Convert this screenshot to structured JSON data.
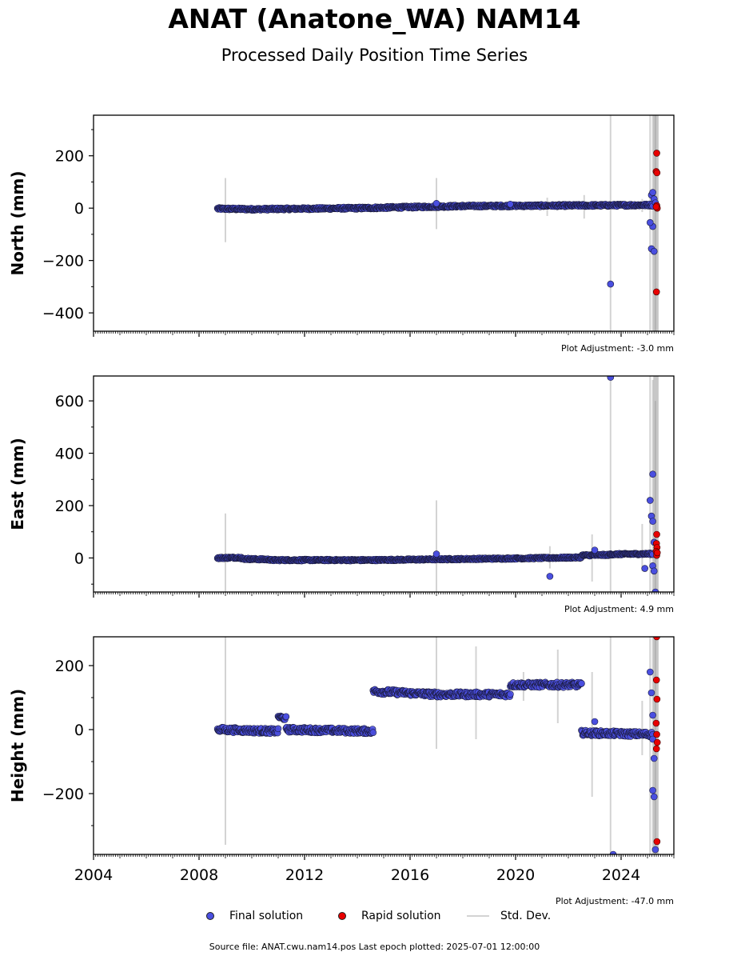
{
  "header": {
    "title": "ANAT (Anatone_WA) NAM14",
    "subtitle": "Processed Daily Position Time Series"
  },
  "legend": {
    "final": "Final solution",
    "rapid": "Rapid solution",
    "stddev": "Std. Dev."
  },
  "footer": "Source file: ANAT.cwu.nam14.pos  Last epoch plotted: 2025-07-01 12:00:00",
  "colors": {
    "final": "#4a4fe0",
    "rapid": "#e80000",
    "stddev": "#d3d3d3",
    "edge": "#1a1a3a"
  },
  "chart_data": [
    {
      "type": "scatter",
      "name": "north",
      "ylabel": "North (mm)",
      "xlim": [
        2004,
        2026
      ],
      "ylim": [
        -470,
        355
      ],
      "yticks": [
        -400,
        -200,
        0,
        200
      ],
      "adjustment": "Plot Adjustment: -3.0 mm",
      "final_segments": [
        {
          "x": [
            2008.7,
            2010.0
          ],
          "y": [
            -2,
            -4
          ],
          "noise": 4
        },
        {
          "x": [
            2010.0,
            2014.0
          ],
          "y": [
            -4,
            0
          ],
          "noise": 4
        },
        {
          "x": [
            2014.0,
            2018.0
          ],
          "y": [
            0,
            8
          ],
          "noise": 4
        },
        {
          "x": [
            2018.0,
            2022.0
          ],
          "y": [
            8,
            10
          ],
          "noise": 4
        },
        {
          "x": [
            2022.0,
            2025.2
          ],
          "y": [
            10,
            12
          ],
          "noise": 4
        }
      ],
      "final_outliers": [
        [
          2017.0,
          18
        ],
        [
          2019.8,
          15
        ],
        [
          2023.6,
          -290
        ],
        [
          2025.15,
          50
        ],
        [
          2025.2,
          60
        ],
        [
          2025.25,
          35
        ],
        [
          2025.2,
          -70
        ],
        [
          2025.15,
          -155
        ],
        [
          2025.25,
          -165
        ],
        [
          2025.1,
          -55
        ],
        [
          2025.3,
          20
        ]
      ],
      "rapid": [
        [
          2025.35,
          210
        ],
        [
          2025.33,
          140
        ],
        [
          2025.36,
          135
        ],
        [
          2025.34,
          -320
        ],
        [
          2025.35,
          10
        ],
        [
          2025.37,
          0
        ],
        [
          2025.33,
          5
        ]
      ],
      "stddev": [
        [
          2009.0,
          -130,
          115
        ],
        [
          2017.0,
          -80,
          115
        ],
        [
          2021.2,
          -30,
          40
        ],
        [
          2022.6,
          -40,
          50
        ],
        [
          2023.6,
          -470,
          355
        ],
        [
          2024.8,
          -15,
          35
        ],
        [
          2025.1,
          -470,
          355
        ],
        [
          2025.2,
          -470,
          355
        ],
        [
          2025.3,
          -470,
          355
        ]
      ]
    },
    {
      "type": "scatter",
      "name": "east",
      "ylabel": "East (mm)",
      "xlim": [
        2004,
        2026
      ],
      "ylim": [
        -130,
        695
      ],
      "yticks": [
        0,
        200,
        400,
        600
      ],
      "adjustment": "Plot Adjustment: 4.9 mm",
      "final_segments": [
        {
          "x": [
            2008.7,
            2009.6
          ],
          "y": [
            0,
            2
          ],
          "noise": 3
        },
        {
          "x": [
            2009.6,
            2010.7
          ],
          "y": [
            -3,
            -6
          ],
          "noise": 3
        },
        {
          "x": [
            2010.7,
            2014.5
          ],
          "y": [
            -8,
            -8
          ],
          "noise": 3
        },
        {
          "x": [
            2014.5,
            2019.7
          ],
          "y": [
            -8,
            -2
          ],
          "noise": 3
        },
        {
          "x": [
            2019.7,
            2022.5
          ],
          "y": [
            -2,
            2
          ],
          "noise": 3
        },
        {
          "x": [
            2022.5,
            2023.6
          ],
          "y": [
            10,
            12
          ],
          "noise": 3
        },
        {
          "x": [
            2023.6,
            2025.2
          ],
          "y": [
            14,
            16
          ],
          "noise": 3
        }
      ],
      "final_outliers": [
        [
          2017.0,
          15
        ],
        [
          2021.3,
          -70
        ],
        [
          2023.0,
          30
        ],
        [
          2023.6,
          690
        ],
        [
          2024.9,
          -40
        ],
        [
          2025.2,
          320
        ],
        [
          2025.1,
          220
        ],
        [
          2025.15,
          160
        ],
        [
          2025.2,
          140
        ],
        [
          2025.25,
          60
        ],
        [
          2025.2,
          -30
        ],
        [
          2025.3,
          -130
        ],
        [
          2025.25,
          -50
        ]
      ],
      "rapid": [
        [
          2025.35,
          90
        ],
        [
          2025.34,
          55
        ],
        [
          2025.36,
          40
        ],
        [
          2025.33,
          25
        ],
        [
          2025.35,
          10
        ],
        [
          2025.37,
          20
        ]
      ],
      "stddev": [
        [
          2009.0,
          -130,
          170
        ],
        [
          2017.0,
          -130,
          220
        ],
        [
          2021.3,
          -40,
          45
        ],
        [
          2022.9,
          -90,
          90
        ],
        [
          2023.6,
          -130,
          695
        ],
        [
          2024.8,
          -50,
          130
        ],
        [
          2025.1,
          -130,
          695
        ],
        [
          2025.2,
          -130,
          680
        ],
        [
          2025.3,
          -130,
          600
        ]
      ]
    },
    {
      "type": "scatter",
      "name": "height",
      "ylabel": "Height (mm)",
      "xlabel": "",
      "xlim": [
        2004,
        2026
      ],
      "ylim": [
        -390,
        290
      ],
      "yticks": [
        -200,
        0,
        200
      ],
      "xticks": [
        2004,
        2008,
        2012,
        2016,
        2020,
        2024
      ],
      "adjustment": "Plot Adjustment: -47.0 mm",
      "final_segments": [
        {
          "x": [
            2008.7,
            2011.0
          ],
          "y": [
            0,
            -5
          ],
          "noise": 8
        },
        {
          "x": [
            2011.0,
            2011.3
          ],
          "y": [
            40,
            35
          ],
          "noise": 6
        },
        {
          "x": [
            2011.3,
            2014.6
          ],
          "y": [
            0,
            -5
          ],
          "noise": 8
        },
        {
          "x": [
            2014.6,
            2017.0
          ],
          "y": [
            120,
            110
          ],
          "noise": 8
        },
        {
          "x": [
            2017.0,
            2019.8
          ],
          "y": [
            110,
            110
          ],
          "noise": 8
        },
        {
          "x": [
            2019.8,
            2022.5
          ],
          "y": [
            140,
            140
          ],
          "noise": 8
        },
        {
          "x": [
            2022.5,
            2025.2
          ],
          "y": [
            -10,
            -15
          ],
          "noise": 8
        }
      ],
      "final_outliers": [
        [
          2023.0,
          25
        ],
        [
          2023.7,
          -390
        ],
        [
          2025.1,
          180
        ],
        [
          2025.15,
          115
        ],
        [
          2025.2,
          45
        ],
        [
          2025.25,
          -90
        ],
        [
          2025.2,
          -190
        ],
        [
          2025.25,
          -210
        ],
        [
          2025.3,
          -375
        ],
        [
          2025.2,
          -30
        ]
      ],
      "rapid": [
        [
          2025.35,
          290
        ],
        [
          2025.34,
          155
        ],
        [
          2025.36,
          95
        ],
        [
          2025.33,
          20
        ],
        [
          2025.35,
          -15
        ],
        [
          2025.37,
          -40
        ],
        [
          2025.34,
          -60
        ],
        [
          2025.36,
          -350
        ]
      ],
      "stddev": [
        [
          2009.0,
          -360,
          290
        ],
        [
          2017.0,
          -60,
          290
        ],
        [
          2018.5,
          -30,
          260
        ],
        [
          2020.3,
          90,
          180
        ],
        [
          2021.6,
          20,
          250
        ],
        [
          2022.9,
          -210,
          180
        ],
        [
          2023.6,
          -390,
          290
        ],
        [
          2024.8,
          -80,
          90
        ],
        [
          2025.1,
          -390,
          290
        ],
        [
          2025.2,
          -390,
          290
        ],
        [
          2025.3,
          -390,
          290
        ]
      ]
    }
  ]
}
